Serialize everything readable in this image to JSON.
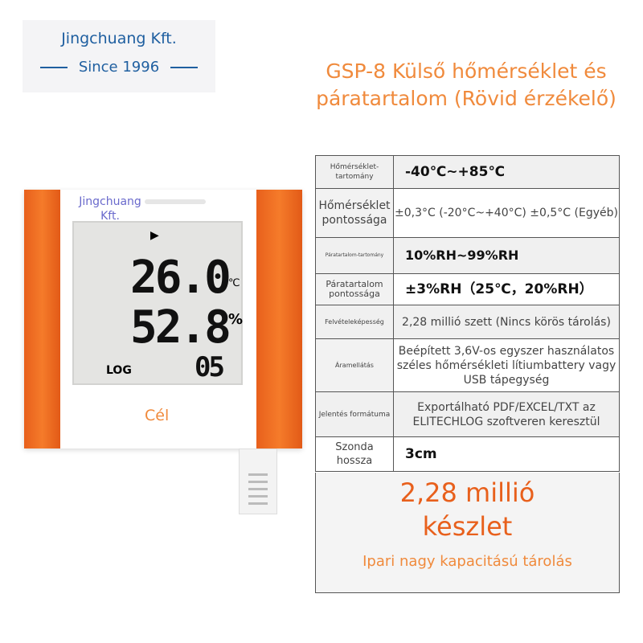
{
  "brand": {
    "name": "Jingchuang Kft.",
    "since": "Since 1996"
  },
  "title": "GSP-8 Külső hőmérséklet és páratartalom (Rövid érzékelő)",
  "device": {
    "watermark": "Jingchuang Kft.",
    "temp": "26.0",
    "temp_unit": "℃",
    "humidity": "52.8",
    "humidity_unit": "%",
    "log": "LOG",
    "count": "05",
    "label": "Cél",
    "accent": "#f57b2a"
  },
  "specs": [
    {
      "label": "Hőmérséklet-tartomány",
      "value": "-40℃~+85℃"
    },
    {
      "label": "Hőmérséklet pontossága",
      "value": "±0,3°C (-20°C~+40°C) ±0,5°C (Egyéb)"
    },
    {
      "label": "Páratartalom-tartomány",
      "value": "10%RH~99%RH"
    },
    {
      "label": "Páratartalom pontossága",
      "value": "±3%RH（25℃，20%RH）"
    },
    {
      "label": "Felvételeképesség",
      "value": "2,28 millió szett (Nincs körös tárolás)"
    },
    {
      "label": "Áramellátás",
      "value": "Beépített 3,6V-os egyszer használatos széles hőmérsékleti lítiumbattery vagy USB tápegység"
    },
    {
      "label": "Jelentés formátuma",
      "value": "Exportálható PDF/EXCEL/TXT az ELITECHLOG szoftveren keresztül"
    },
    {
      "label": "Szonda hossza",
      "value": "3cm"
    }
  ],
  "highlight": {
    "headline": "2,28 millió készlet",
    "sub": "Ipari nagy kapacitású tárolás"
  }
}
